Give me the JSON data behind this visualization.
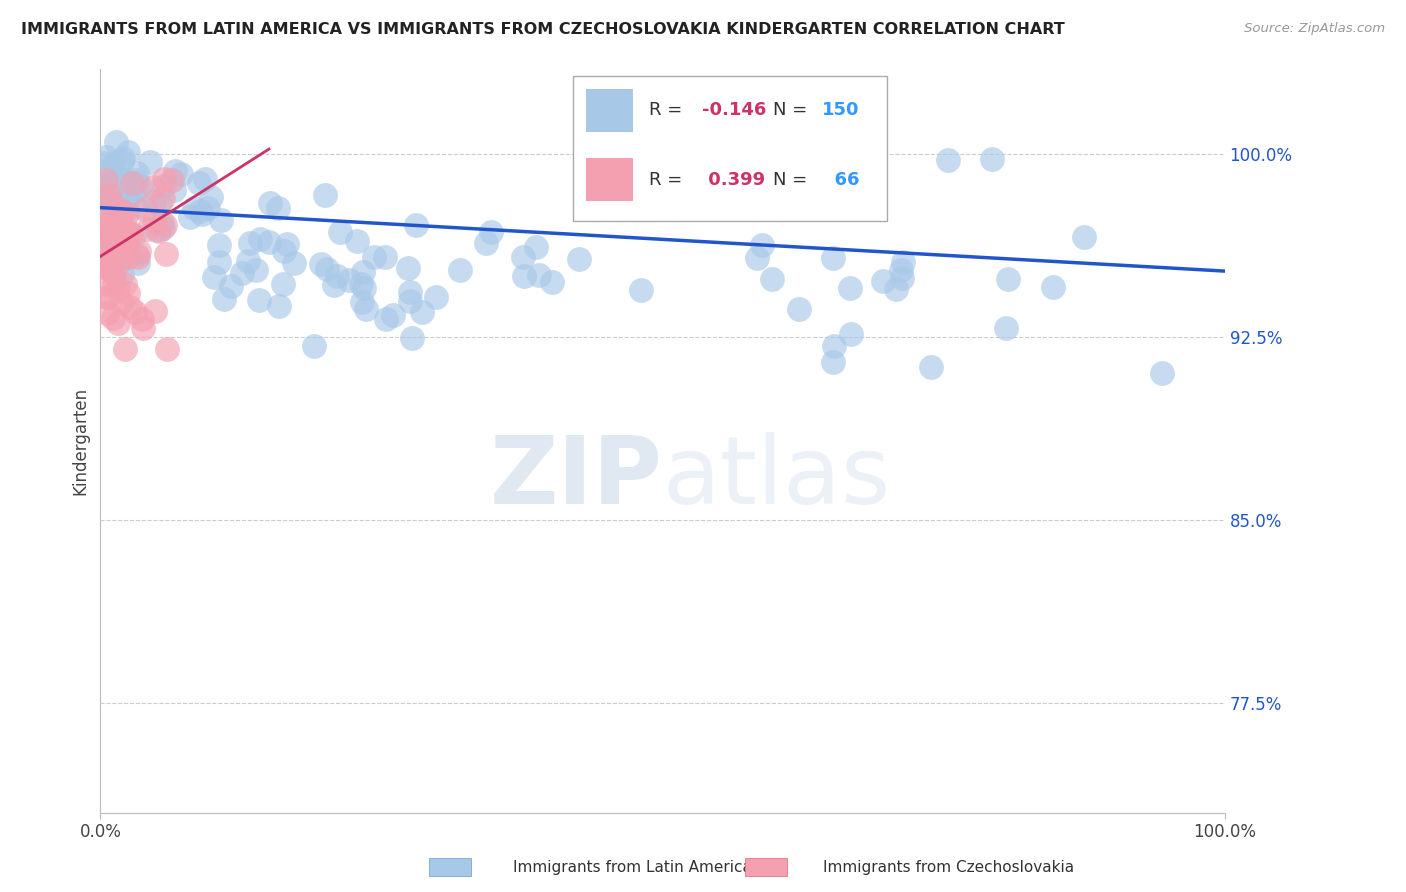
{
  "title": "IMMIGRANTS FROM LATIN AMERICA VS IMMIGRANTS FROM CZECHOSLOVAKIA KINDERGARTEN CORRELATION CHART",
  "source": "Source: ZipAtlas.com",
  "ylabel": "Kindergarten",
  "yticks": [
    77.5,
    85.0,
    92.5,
    100.0
  ],
  "ylim": [
    73.0,
    103.5
  ],
  "xlim": [
    0.0,
    1.0
  ],
  "legend_blue_R": "-0.146",
  "legend_blue_N": "150",
  "legend_pink_R": "0.399",
  "legend_pink_N": "66",
  "blue_color": "#a8c8e8",
  "blue_edge_color": "#6699cc",
  "pink_color": "#f4a0b0",
  "pink_edge_color": "#dd6677",
  "blue_line_color": "#2255cc",
  "pink_line_color": "#cc3366",
  "legend_R_color": "#cc3366",
  "legend_N_color": "#3399ff",
  "watermark_color": "#c8d8e8",
  "background_color": "#ffffff",
  "grid_color": "#cccccc"
}
